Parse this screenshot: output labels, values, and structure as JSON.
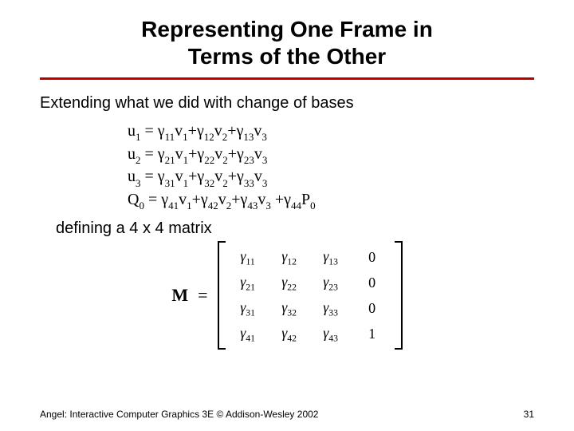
{
  "title_line1": "Representing One Frame in",
  "title_line2": "Terms of the Other",
  "body1": "Extending what we did with change of bases",
  "eq": {
    "u": "u",
    "v": "v",
    "Q": "Q",
    "P": "P",
    "gamma": "γ",
    "rows": [
      {
        "lhs": "u",
        "lhs_sub": "1",
        "terms": [
          [
            "11",
            "1"
          ],
          [
            "12",
            "2"
          ],
          [
            "13",
            "3"
          ]
        ]
      },
      {
        "lhs": "u",
        "lhs_sub": "2",
        "terms": [
          [
            "21",
            "1"
          ],
          [
            "22",
            "2"
          ],
          [
            "23",
            "3"
          ]
        ]
      },
      {
        "lhs": "u",
        "lhs_sub": "3",
        "terms": [
          [
            "31",
            "1"
          ],
          [
            "32",
            "2"
          ],
          [
            "33",
            "3"
          ]
        ]
      }
    ],
    "q_row": {
      "lhs": "Q",
      "lhs_sub": "0",
      "terms": [
        [
          "41",
          "1"
        ],
        [
          "42",
          "2"
        ],
        [
          "43",
          "3"
        ]
      ],
      "extra": [
        "44",
        "0"
      ]
    }
  },
  "body2": "defining a 4 x 4 matrix",
  "matrix": {
    "label": "M",
    "eq": "=",
    "gamma": "γ",
    "cells": [
      [
        "g11",
        "g12",
        "g13",
        "0"
      ],
      [
        "g21",
        "g22",
        "g23",
        "0"
      ],
      [
        "g31",
        "g32",
        "g33",
        "0"
      ],
      [
        "g41",
        "g42",
        "g43",
        "1"
      ]
    ],
    "subs": {
      "g11": "11",
      "g12": "12",
      "g13": "13",
      "g21": "21",
      "g22": "22",
      "g23": "23",
      "g31": "31",
      "g32": "32",
      "g33": "33",
      "g41": "41",
      "g42": "42",
      "g43": "43"
    }
  },
  "footer_text": "Angel: Interactive Computer Graphics 3E © Addison-Wesley 2002",
  "page_number": "31",
  "colors": {
    "rule": "#c00000",
    "text": "#000000",
    "bg": "#ffffff"
  }
}
